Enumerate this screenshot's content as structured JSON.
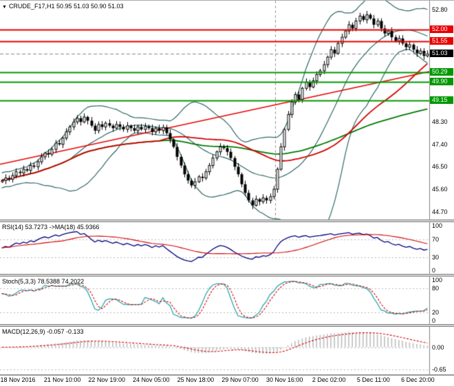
{
  "window": {
    "dropdown_icon": "▼",
    "symbol_header": "CRUDE_F17,H1 50.95 51.03 50.90 51.03"
  },
  "chart_data": {
    "type": "candlestick",
    "symbol": "CRUDE_F17",
    "timeframe": "H1",
    "ohlc": {
      "open": 50.95,
      "high": 51.03,
      "low": 50.9,
      "close": 51.03
    },
    "time_labels": [
      "18 Nov 2016",
      "21 Nov 10:00",
      "22 Nov 19:00",
      "24 Nov 05:00",
      "25 Nov 18:00",
      "29 Nov 07:00",
      "30 Nov 16:00",
      "2 Dec 02:00",
      "5 Dec 11:00",
      "6 Dec 20:00"
    ],
    "main_panel": {
      "ylim": [
        44.55,
        53.0
      ],
      "yticks": [
        52.8,
        48.3,
        47.4,
        46.5,
        45.6,
        44.7
      ],
      "closes": [
        45.95,
        46.05,
        46.0,
        46.15,
        46.3,
        46.25,
        46.4,
        46.35,
        46.55,
        46.5,
        46.7,
        46.9,
        47.05,
        47.0,
        47.2,
        47.45,
        47.4,
        47.65,
        47.9,
        48.1,
        48.3,
        48.45,
        48.3,
        48.5,
        48.35,
        48.15,
        47.95,
        48.2,
        48.1,
        48.25,
        48.15,
        48.05,
        48.2,
        48.1,
        48.0,
        48.15,
        48.05,
        47.95,
        48.1,
        48.0,
        48.12,
        48.05,
        47.9,
        48.05,
        47.95,
        48.08,
        47.85,
        47.6,
        47.3,
        46.9,
        46.55,
        46.2,
        45.95,
        45.75,
        45.9,
        46.1,
        46.05,
        46.3,
        46.55,
        46.85,
        47.1,
        47.3,
        47.25,
        47.1,
        46.85,
        46.5,
        46.2,
        45.8,
        45.45,
        45.15,
        44.95,
        45.2,
        45.1,
        45.25,
        45.15,
        45.3,
        45.6,
        46.4,
        47.3,
        48.0,
        48.6,
        49.1,
        49.4,
        49.2,
        49.65,
        49.9,
        49.7,
        49.95,
        50.2,
        50.35,
        50.6,
        50.9,
        51.2,
        51.05,
        51.45,
        51.7,
        51.95,
        52.2,
        52.05,
        52.35,
        52.55,
        52.4,
        52.6,
        52.45,
        52.2,
        52.35,
        52.05,
        51.85,
        51.95,
        51.7,
        51.55,
        51.65,
        51.45,
        51.3,
        51.4,
        51.2,
        51.05,
        51.15,
        50.95,
        51.03
      ],
      "bollinger": {
        "period": 20,
        "deviation": 2,
        "color": "#2f6868"
      },
      "ma_fast": {
        "period": 45,
        "color": "#d40000"
      },
      "ma_slow": {
        "period": 85,
        "color": "#007800"
      },
      "hlines": [
        {
          "price": 52.0,
          "label": "52.00",
          "color": "#e80000"
        },
        {
          "price": 51.55,
          "label": "51.55",
          "color": "#e80000"
        },
        {
          "price": 50.29,
          "label": "50.29",
          "color": "#009800"
        },
        {
          "price": 49.9,
          "label": "49.90",
          "color": "#009800"
        },
        {
          "price": 49.15,
          "label": "49.15",
          "color": "#009800"
        }
      ],
      "trendline": {
        "from_price": 46.6,
        "to_price": 50.32,
        "color": "#e80000"
      },
      "vline_frac": 0.641,
      "current_price": {
        "value": 51.03,
        "label": "51.03",
        "box_color": "#000000"
      }
    },
    "rsi_panel": {
      "label": "RSI(14) 53.7273  ->MA(18) 45.9366",
      "period": 14,
      "ma_period": 18,
      "yticks": [
        100,
        70,
        30,
        0
      ],
      "levels": [
        70,
        30
      ],
      "line_color": "#000080",
      "ma_color": "#d40000"
    },
    "stoch_panel": {
      "label": "Stoch(5,3,3) 78.5388 74.2022",
      "k": 5,
      "d": 3,
      "slowing": 3,
      "yticks": [
        100,
        80,
        20,
        0
      ],
      "levels": [
        80,
        20
      ],
      "k_color": "#2aa8ae",
      "d_color": "#d40000"
    },
    "macd_panel": {
      "label": "MACD(12,26,9) -0.057 -0.133",
      "fast": 12,
      "slow": 26,
      "signal": 9,
      "yticks": [
        "0.00",
        "-0.65"
      ],
      "ytick_values": [
        0,
        -0.65
      ],
      "hist_color": "#bdbdbd",
      "signal_color": "#d40000"
    }
  }
}
